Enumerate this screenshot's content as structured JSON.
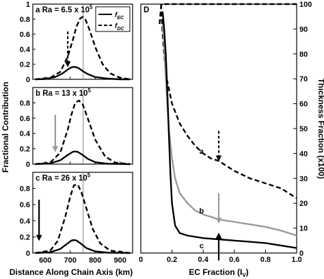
{
  "figure": {
    "left_ylabel": "Fractional Contribution",
    "left_xlabel": "Distance Along Chain Axis (km)",
    "legend": {
      "ec": "fEC",
      "dc": "fDC",
      "ec_main": "f",
      "ec_sub": "EC",
      "dc_main": "f",
      "dc_sub": "DC"
    }
  },
  "chart_data": [
    {
      "panel": "a",
      "type": "line",
      "title_letter": "a",
      "title_text": "Ra = 6.5 x 10",
      "title_exp": "5",
      "xlim": [
        550,
        950
      ],
      "ylim": [
        0,
        1
      ],
      "xticks": [],
      "yticks": [
        "0",
        "0.2",
        "0.4",
        "0.6",
        "0.8",
        "1"
      ],
      "vline_x": 752,
      "arrow": {
        "x": 690,
        "color": "#000000",
        "style": "dashed"
      },
      "series": [
        {
          "name": "fEC",
          "style": "solid",
          "color": "#000000",
          "x": [
            560,
            600,
            640,
            670,
            690,
            705,
            715,
            725,
            735,
            750,
            770,
            800,
            850,
            900,
            940
          ],
          "y": [
            0.0,
            0.005,
            0.03,
            0.08,
            0.13,
            0.16,
            0.165,
            0.16,
            0.145,
            0.11,
            0.07,
            0.03,
            0.01,
            0.0,
            0.0
          ]
        },
        {
          "name": "fDC",
          "style": "dashed",
          "color": "#000000",
          "x": [
            560,
            620,
            660,
            690,
            710,
            725,
            740,
            750,
            760,
            775,
            800,
            830,
            860,
            900,
            940
          ],
          "y": [
            0.0,
            0.02,
            0.1,
            0.3,
            0.52,
            0.7,
            0.81,
            0.83,
            0.8,
            0.68,
            0.43,
            0.2,
            0.08,
            0.02,
            0.0
          ]
        }
      ]
    },
    {
      "panel": "b",
      "type": "line",
      "title_letter": "b",
      "title_text": "Ra = 13 x 10",
      "title_exp": "5",
      "xlim": [
        550,
        950
      ],
      "ylim": [
        0,
        1
      ],
      "xticks": [],
      "yticks": [
        "0",
        "0.2",
        "0.4",
        "0.6",
        "0.8"
      ],
      "vline_x": 752,
      "arrow": {
        "x": 640,
        "color": "#999999",
        "style": "solid"
      },
      "series": [
        {
          "name": "fEC",
          "style": "solid",
          "color": "#000000",
          "x": [
            560,
            620,
            660,
            690,
            710,
            720,
            730,
            750,
            770,
            800,
            850,
            940
          ],
          "y": [
            0.0,
            0.01,
            0.05,
            0.12,
            0.16,
            0.165,
            0.16,
            0.12,
            0.07,
            0.025,
            0.005,
            0.0
          ]
        },
        {
          "name": "fDC",
          "style": "dashed",
          "color": "#000000",
          "x": [
            560,
            620,
            660,
            690,
            705,
            720,
            735,
            750,
            770,
            800,
            840,
            880,
            940
          ],
          "y": [
            0.0,
            0.02,
            0.15,
            0.45,
            0.65,
            0.8,
            0.83,
            0.78,
            0.6,
            0.32,
            0.1,
            0.02,
            0.0
          ]
        }
      ]
    },
    {
      "panel": "c",
      "type": "line",
      "title_letter": "c",
      "title_text": "Ra = 26 x 10",
      "title_exp": "5",
      "xlim": [
        550,
        950
      ],
      "ylim": [
        0,
        1
      ],
      "xticks": [
        "600",
        "700",
        "800",
        "900"
      ],
      "yticks": [
        "0",
        "0.2",
        "0.4",
        "0.6",
        "0.8"
      ],
      "vline_x": 752,
      "arrow": {
        "x": 575,
        "color": "#000000",
        "style": "solid"
      },
      "series": [
        {
          "name": "fEC",
          "style": "solid",
          "color": "#000000",
          "x": [
            560,
            620,
            660,
            690,
            705,
            715,
            725,
            745,
            765,
            800,
            850,
            940
          ],
          "y": [
            0.0,
            0.01,
            0.05,
            0.12,
            0.155,
            0.16,
            0.155,
            0.11,
            0.06,
            0.02,
            0.005,
            0.0
          ]
        },
        {
          "name": "fDC",
          "style": "dashed",
          "color": "#000000",
          "x": [
            560,
            620,
            650,
            680,
            700,
            715,
            730,
            745,
            765,
            790,
            820,
            860,
            940
          ],
          "y": [
            0.0,
            0.03,
            0.15,
            0.45,
            0.7,
            0.84,
            0.85,
            0.75,
            0.55,
            0.3,
            0.12,
            0.03,
            0.0
          ]
        }
      ]
    },
    {
      "panel": "D",
      "type": "line",
      "title_letter": "D",
      "xlabel": "EC Fraction (I",
      "xlabel_sub": "V",
      "xlabel_end": ")",
      "ylabel": "Thickness Fraction (x100)",
      "xlim": [
        0,
        1
      ],
      "ylim": [
        0,
        100
      ],
      "xticks": [
        "0",
        "0.2",
        "0.4",
        "0.6",
        "0.8",
        "1.0"
      ],
      "yticks": [
        "0",
        "10",
        "20",
        "30",
        "40",
        "50",
        "60",
        "70",
        "80",
        "90",
        "100"
      ],
      "labels": [
        {
          "text": "a",
          "x": 0.39,
          "y": 41
        },
        {
          "text": "b",
          "x": 0.39,
          "y": 17
        },
        {
          "text": "c",
          "x": 0.39,
          "y": 3
        }
      ],
      "arrows": [
        {
          "x": 0.5,
          "y_from": 49,
          "y_to": 38,
          "color": "#000000",
          "style": "dashed"
        },
        {
          "x": 0.5,
          "y_from": 24,
          "y_to": 13,
          "color": "#999999",
          "style": "solid"
        },
        {
          "x": 0.5,
          "y_from": -3,
          "y_to": 7,
          "color": "#000000",
          "style": "solid"
        }
      ],
      "series": [
        {
          "name": "a",
          "style": "dashed",
          "color": "#000000",
          "x": [
            0.12,
            0.13,
            0.135,
            0.15,
            0.2,
            0.25,
            0.3,
            0.35,
            0.4,
            0.45,
            0.5,
            0.6,
            0.7,
            0.8,
            0.9,
            1.0
          ],
          "y": [
            92,
            99,
            100,
            100,
            100,
            100,
            100,
            100,
            100,
            100,
            100,
            100,
            100,
            100,
            100,
            100
          ]
        },
        {
          "name": "a",
          "style": "dashed",
          "color": "#000000",
          "x": [
            0.13,
            0.14,
            0.16,
            0.2,
            0.25,
            0.3,
            0.35,
            0.4,
            0.45,
            0.5,
            0.6,
            0.7,
            0.8,
            0.9,
            1.0
          ],
          "y": [
            100,
            88,
            72,
            60,
            52,
            47,
            43,
            40,
            38,
            37,
            33,
            30,
            28,
            26,
            22
          ]
        },
        {
          "name": "b",
          "style": "solid",
          "color": "#999999",
          "x": [
            0.14,
            0.15,
            0.16,
            0.18,
            0.2,
            0.22,
            0.25,
            0.3,
            0.35,
            0.4,
            0.45,
            0.5,
            0.6,
            0.7,
            0.8,
            0.9,
            1.0
          ],
          "y": [
            92,
            84,
            70,
            50,
            38,
            30,
            24,
            20,
            17,
            15.5,
            14.5,
            13.5,
            12.5,
            11.5,
            10.5,
            9,
            7
          ]
        },
        {
          "name": "c",
          "style": "solid",
          "color": "#000000",
          "x": [
            0.14,
            0.15,
            0.16,
            0.17,
            0.18,
            0.19,
            0.2,
            0.22,
            0.25,
            0.3,
            0.4,
            0.5,
            0.6,
            0.7,
            0.8,
            0.9,
            1.0
          ],
          "y": [
            97,
            90,
            80,
            65,
            48,
            32,
            20,
            11,
            8,
            7,
            6,
            5.5,
            5,
            4.5,
            4,
            3,
            2
          ]
        }
      ]
    }
  ]
}
